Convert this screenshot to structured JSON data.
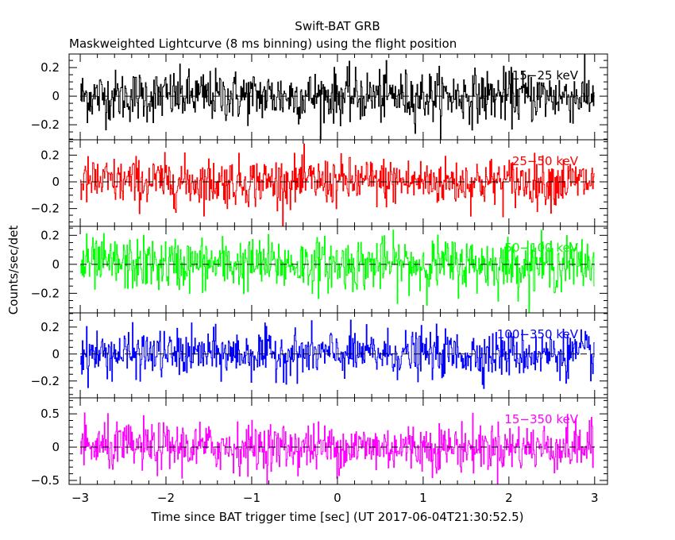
{
  "chart_data": {
    "type": "line",
    "title": "Swift-BAT GRB",
    "subtitle": "Maskweighted Lightcurve (8 ms binning) using the flight position",
    "xlabel": "Time since BAT trigger time [sec] (UT 2017-06-04T21:30:52.5)",
    "ylabel": "Counts/sec/det",
    "xlim": [
      -3.13,
      3.15
    ],
    "x_ticks": [
      -3,
      -2,
      -1,
      0,
      1,
      2,
      3
    ],
    "x_tick_labels": [
      "−3",
      "−2",
      "−1",
      "0",
      "1",
      "2",
      "3"
    ],
    "bin_size_sec": 0.008,
    "x_start": -3.0,
    "x_end": 3.0,
    "grid": false,
    "panels": [
      {
        "name": "15-25 keV",
        "label": "15−25 keV",
        "color": "#000000",
        "ylim": [
          -0.305,
          0.295
        ],
        "y_ticks": [
          0.2,
          0,
          -0.2
        ],
        "y_tick_labels": [
          "0.2",
          "0",
          "−0.2"
        ],
        "noise_sigma": 0.09
      },
      {
        "name": "25-50 keV",
        "label": "25−50 keV",
        "color": "#ff0000",
        "ylim": [
          -0.333,
          0.315
        ],
        "y_ticks": [
          0.2,
          0,
          -0.2
        ],
        "y_tick_labels": [
          "0.2",
          "0",
          "−0.2"
        ],
        "noise_sigma": 0.09
      },
      {
        "name": "50-100 keV",
        "label": "50−100 keV",
        "color": "#00ff00",
        "ylim": [
          -0.335,
          0.262
        ],
        "y_ticks": [
          0.2,
          0,
          -0.2
        ],
        "y_tick_labels": [
          "0.2",
          "0",
          "−0.2"
        ],
        "noise_sigma": 0.09
      },
      {
        "name": "100-350 keV",
        "label": "100−350 keV",
        "color": "#0000ff",
        "ylim": [
          -0.325,
          0.305
        ],
        "y_ticks": [
          0.2,
          0,
          -0.2
        ],
        "y_tick_labels": [
          "0.2",
          "0",
          "−0.2"
        ],
        "noise_sigma": 0.085
      },
      {
        "name": "15-350 keV",
        "label": "15−350 keV",
        "color": "#ff00ff",
        "ylim": [
          -0.56,
          0.74
        ],
        "y_ticks": [
          0.5,
          0,
          -0.5
        ],
        "y_tick_labels": [
          "0.5",
          "0",
          "−0.5"
        ],
        "noise_sigma": 0.18
      }
    ]
  }
}
